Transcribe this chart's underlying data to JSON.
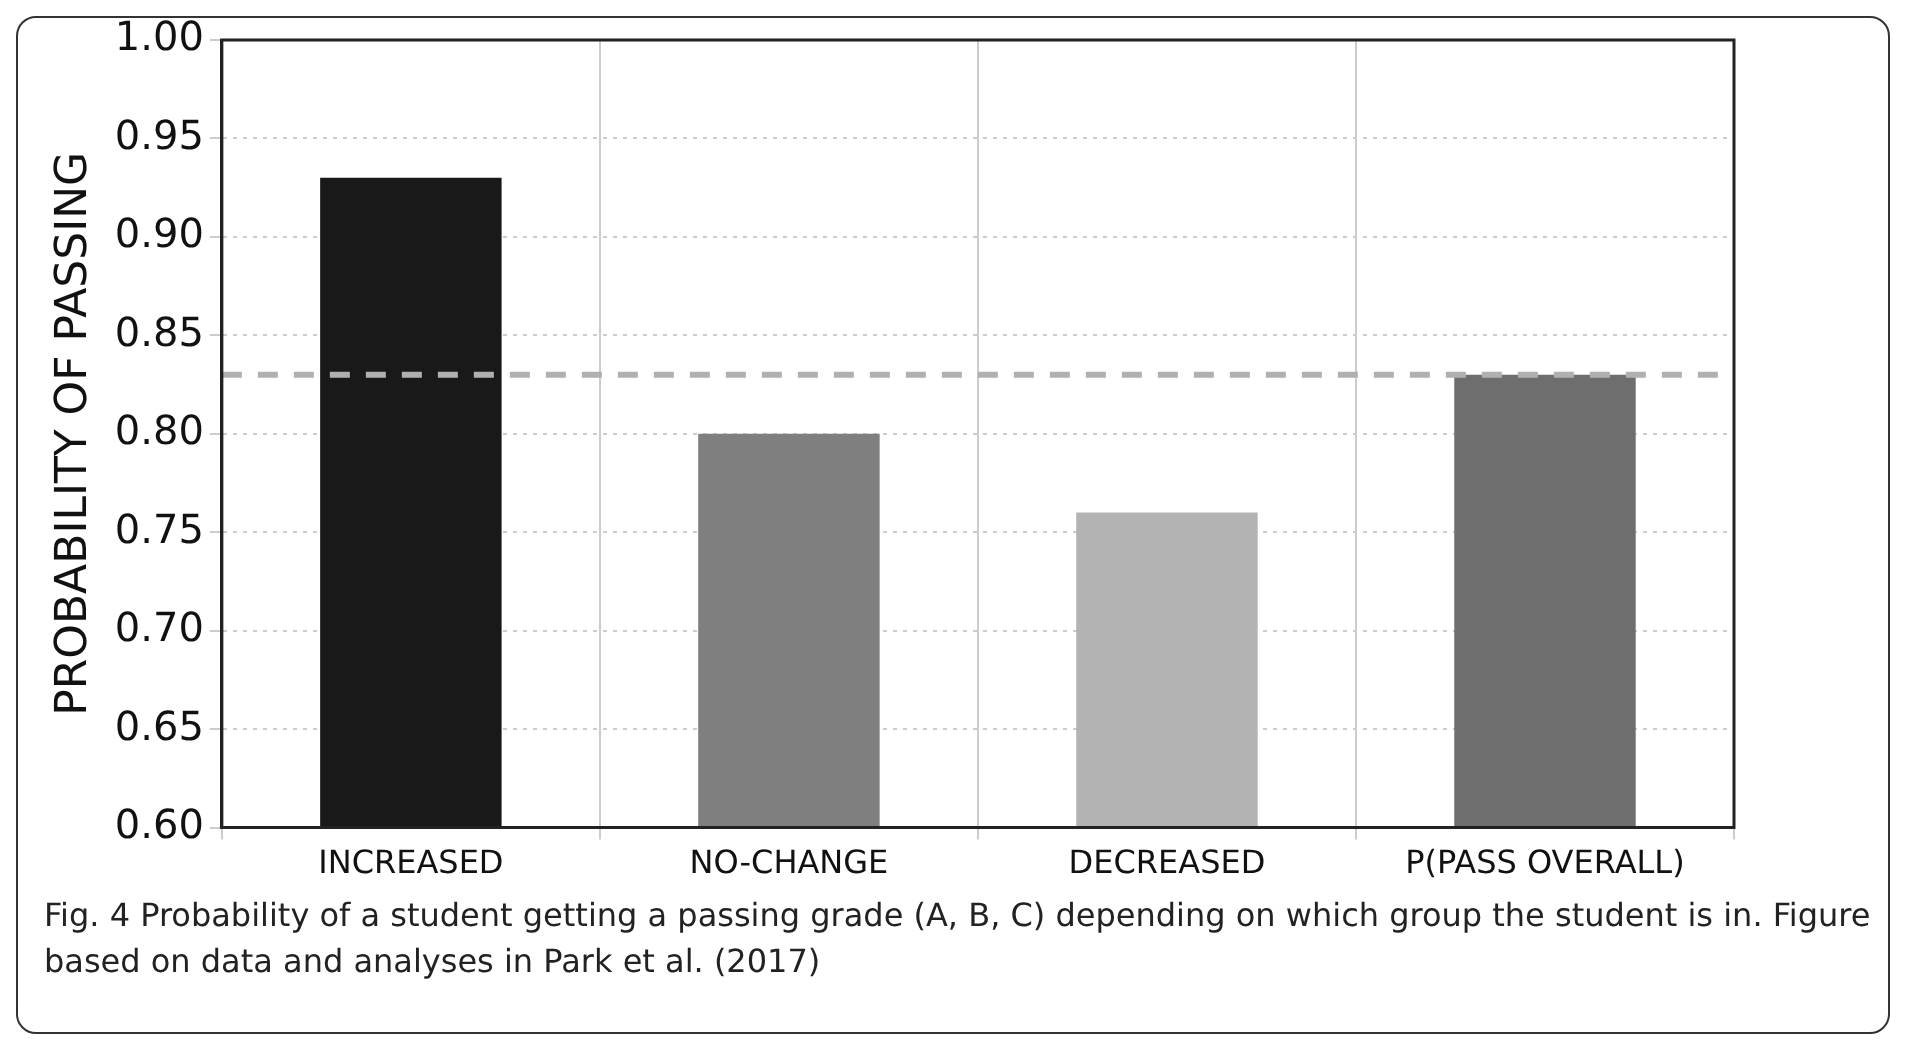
{
  "chart_data": {
    "type": "bar",
    "ylabel": "PROBABILITY OF PASSING",
    "categories": [
      "INCREASED",
      "NO-CHANGE",
      "DECREASED",
      "P(PASS OVERALL)"
    ],
    "values": [
      0.93,
      0.8,
      0.76,
      0.83
    ],
    "colors": [
      "#191919",
      "#7f7f7f",
      "#b3b3b3",
      "#6e6e6e"
    ],
    "ylim": [
      0.6,
      1.0
    ],
    "yticks": [
      {
        "value": 0.6,
        "label": "0.60"
      },
      {
        "value": 0.65,
        "label": "0.65"
      },
      {
        "value": 0.7,
        "label": "0.70"
      },
      {
        "value": 0.75,
        "label": "0.75"
      },
      {
        "value": 0.8,
        "label": "0.80"
      },
      {
        "value": 0.85,
        "label": "0.85"
      },
      {
        "value": 0.9,
        "label": "0.90"
      },
      {
        "value": 0.95,
        "label": "0.95"
      },
      {
        "value": 1.0,
        "label": "1.00"
      }
    ],
    "grid": true,
    "legend": false,
    "ref_lines": [
      {
        "axis": "y",
        "value": 0.83,
        "color": "#b0b0b0",
        "line_style": "dashed"
      }
    ],
    "annotations": [
      "Fig. 4 Probability of a student getting a passing grade (A, B, C) depending on which group the student is in. Figure based on data and analyses in Park et al. (2017)"
    ]
  }
}
